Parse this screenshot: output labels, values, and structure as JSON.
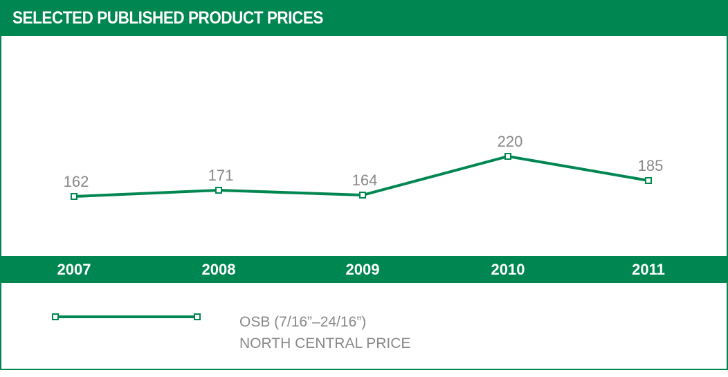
{
  "chart_data": {
    "type": "line",
    "title": "SELECTED PUBLISHED PRODUCT PRICES",
    "categories": [
      "2007",
      "2008",
      "2009",
      "2010",
      "2011"
    ],
    "series": [
      {
        "name": "OSB (7/16”–24/16”) NORTH CENTRAL PRICE",
        "values": [
          162,
          171,
          164,
          220,
          185
        ]
      }
    ],
    "legend": {
      "line1": "OSB (7/16”–24/16”)",
      "line2": "NORTH CENTRAL PRICE",
      "placement": "bottom"
    },
    "grid": false,
    "data_labels": true
  },
  "colors": {
    "brand": "#008751",
    "label": "#888888"
  }
}
